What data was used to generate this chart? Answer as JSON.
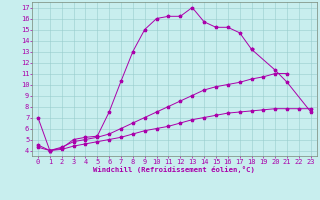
{
  "xlabel": "Windchill (Refroidissement éolien,°C)",
  "xlim": [
    -0.5,
    23.5
  ],
  "ylim": [
    3.5,
    17.5
  ],
  "xticks": [
    0,
    1,
    2,
    3,
    4,
    5,
    6,
    7,
    8,
    9,
    10,
    11,
    12,
    13,
    14,
    15,
    16,
    17,
    18,
    19,
    20,
    21,
    22,
    23
  ],
  "yticks": [
    4,
    5,
    6,
    7,
    8,
    9,
    10,
    11,
    12,
    13,
    14,
    15,
    16,
    17
  ],
  "bg_color": "#c8eeee",
  "line_color": "#aa00aa",
  "grid_color": "#99cccc",
  "curve1_x": [
    0,
    1,
    2,
    3,
    4,
    5,
    6,
    7,
    8,
    9,
    10,
    11,
    12,
    13,
    14,
    15,
    16,
    17,
    18
  ],
  "curve1_y": [
    7.0,
    4.0,
    4.2,
    5.0,
    5.2,
    5.3,
    7.5,
    10.3,
    13.0,
    15.0,
    16.0,
    16.2,
    16.2,
    17.0,
    15.7,
    15.2,
    15.2,
    14.7,
    13.2
  ],
  "curve2_x": [
    18,
    20,
    21,
    23
  ],
  "curve2_y": [
    13.2,
    11.3,
    10.2,
    7.5
  ],
  "curve3_x": [
    0,
    1,
    2,
    3,
    4,
    5,
    6,
    7,
    8,
    9,
    10,
    11,
    12,
    13,
    14,
    15,
    16,
    17,
    18,
    19,
    20,
    21
  ],
  "curve3_y": [
    4.5,
    4.0,
    4.3,
    4.8,
    5.0,
    5.2,
    5.5,
    6.0,
    6.5,
    7.0,
    7.5,
    8.0,
    8.5,
    9.0,
    9.5,
    9.8,
    10.0,
    10.2,
    10.5,
    10.7,
    11.0,
    11.0
  ],
  "curve4_x": [
    0,
    1,
    2,
    3,
    4,
    5,
    6,
    7,
    8,
    9,
    10,
    11,
    12,
    13,
    14,
    15,
    16,
    17,
    18,
    19,
    20,
    21,
    22,
    23
  ],
  "curve4_y": [
    4.3,
    4.0,
    4.1,
    4.4,
    4.6,
    4.8,
    5.0,
    5.2,
    5.5,
    5.8,
    6.0,
    6.2,
    6.5,
    6.8,
    7.0,
    7.2,
    7.4,
    7.5,
    7.6,
    7.7,
    7.8,
    7.8,
    7.8,
    7.8
  ],
  "tick_fontsize": 5,
  "xlabel_fontsize": 5.2,
  "linewidth": 0.7,
  "markersize": 2.5
}
